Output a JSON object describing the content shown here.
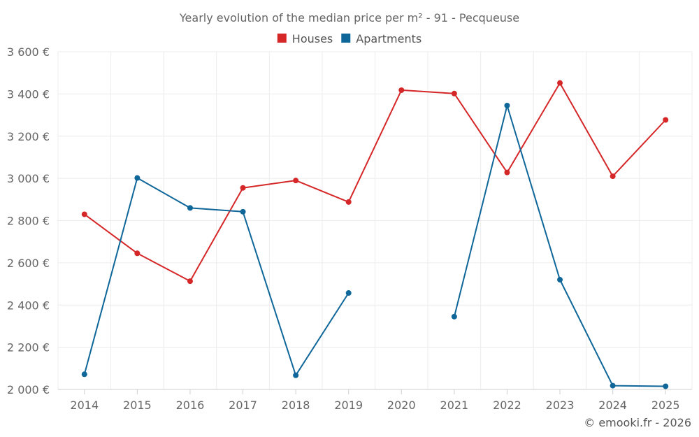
{
  "chart_data": {
    "type": "line",
    "title": "Yearly evolution of the median price per m² - 91 - Pecqueuse",
    "xlabel": "",
    "ylabel": "",
    "categories": [
      "2014",
      "2015",
      "2016",
      "2017",
      "2018",
      "2019",
      "2020",
      "2021",
      "2022",
      "2023",
      "2024",
      "2025"
    ],
    "ylim": [
      2000,
      3600
    ],
    "yticks": [
      2000,
      2200,
      2400,
      2600,
      2800,
      3000,
      3200,
      3400,
      3600
    ],
    "ytick_labels": [
      "2 000 €",
      "2 200 €",
      "2 400 €",
      "2 600 €",
      "2 800 €",
      "3 000 €",
      "3 200 €",
      "3 400 €",
      "3 600 €"
    ],
    "grid": true,
    "legend_position": "top-center",
    "series": [
      {
        "name": "Houses",
        "color": "#d62728",
        "values": [
          2830,
          2645,
          2513,
          2955,
          2990,
          2888,
          3418,
          3402,
          3028,
          3452,
          3010,
          3277
        ]
      },
      {
        "name": "Apartments",
        "color": "#0e6699",
        "values": [
          2072,
          3002,
          2860,
          2842,
          2067,
          2457,
          null,
          2345,
          3345,
          2520,
          2018,
          2015
        ]
      }
    ],
    "credit": "© emooki.fr - 2026"
  }
}
